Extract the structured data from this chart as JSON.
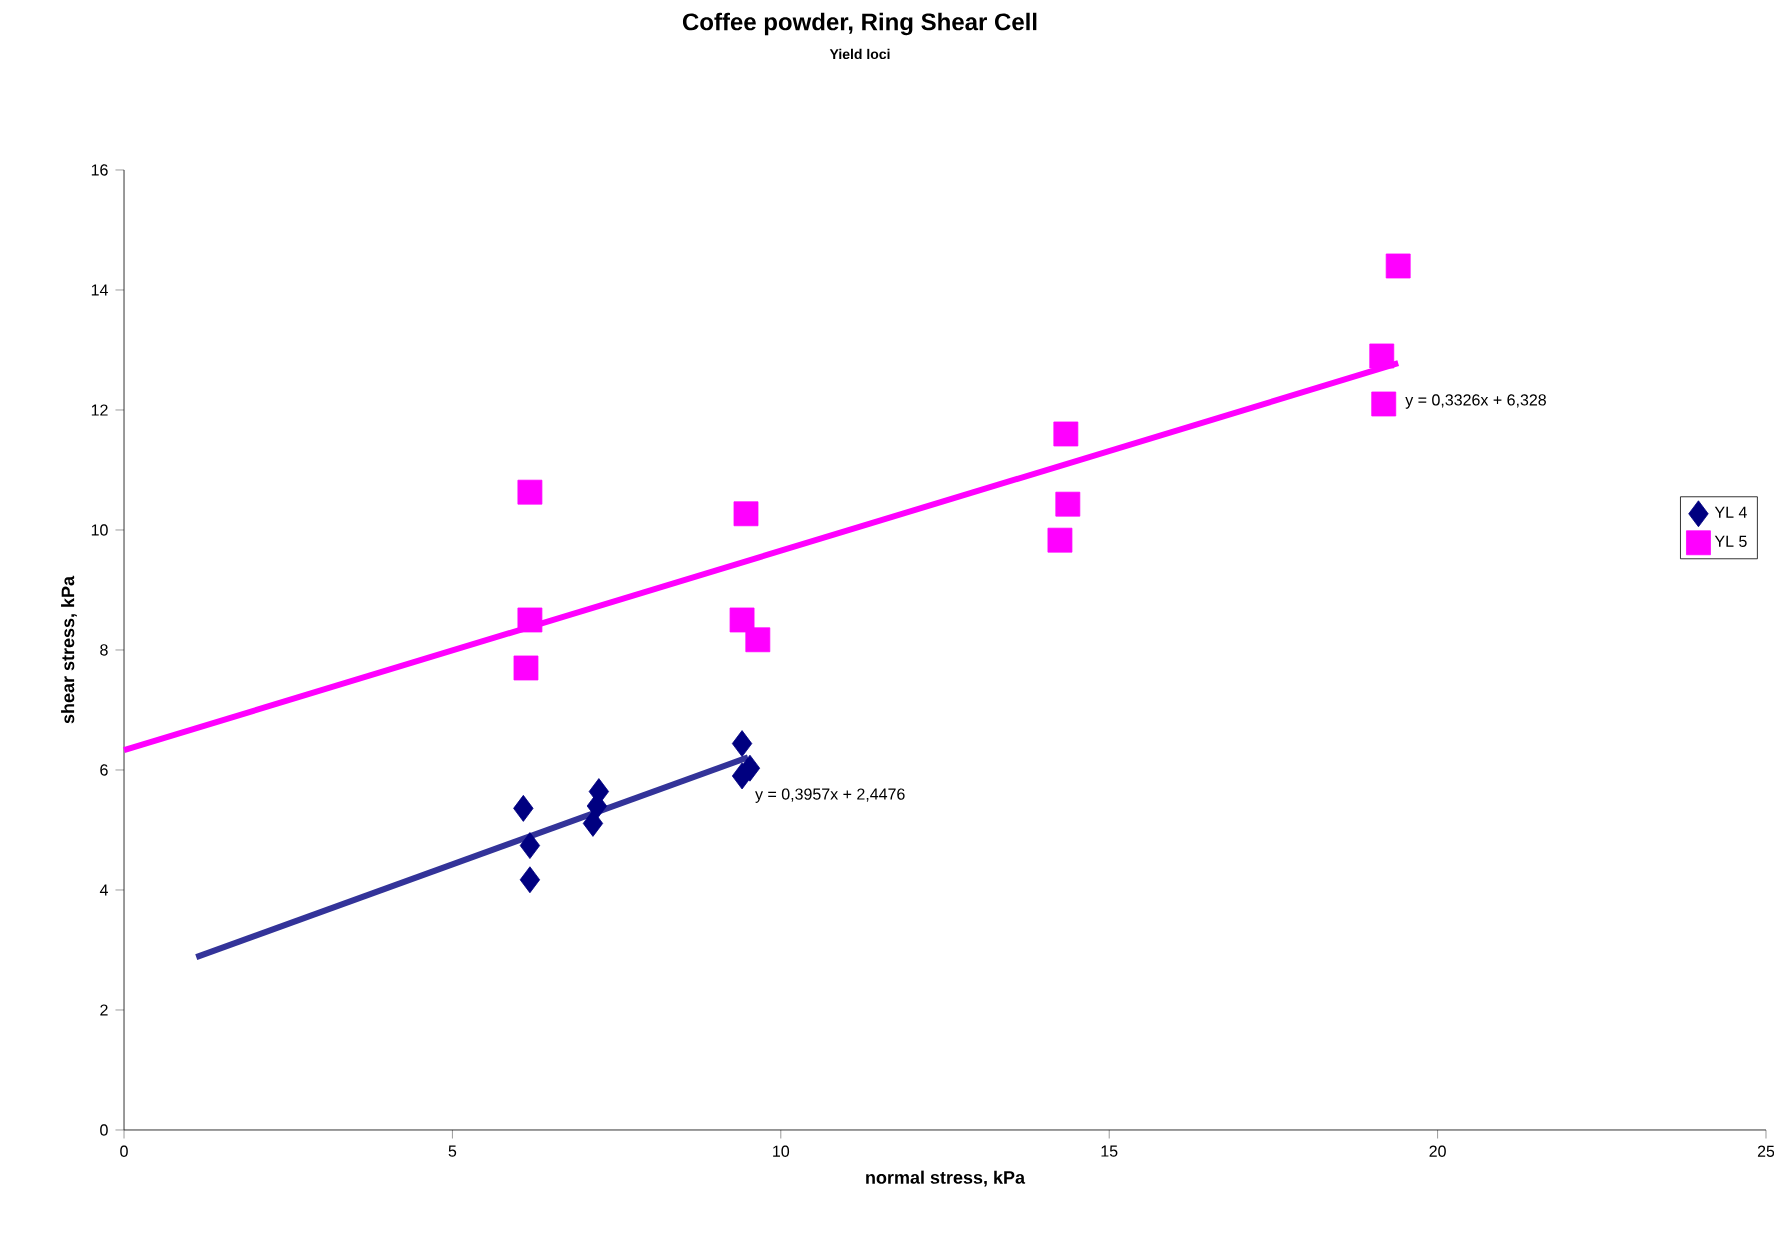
{
  "chart_data": {
    "type": "scatter",
    "title": "Coffee powder, Ring Shear Cell",
    "subtitle": "Yield loci",
    "xlabel": "normal stress, kPa",
    "ylabel": "shear stress, kPa",
    "xlim": [
      0,
      25
    ],
    "xticks": [
      0,
      5,
      10,
      15,
      20,
      25
    ],
    "ylim": [
      0,
      16
    ],
    "yticks": [
      0,
      2,
      4,
      6,
      8,
      10,
      12,
      14,
      16
    ],
    "legend": "right",
    "series": [
      {
        "name": "YL 4",
        "color": "#000080",
        "marker": "diamond",
        "x": [
          6.08,
          6.18,
          6.18,
          7.14,
          7.2,
          7.23,
          9.41,
          9.41,
          9.53
        ],
        "values": [
          5.36,
          4.74,
          4.17,
          5.11,
          5.4,
          5.64,
          6.44,
          5.9,
          6.03
        ]
      },
      {
        "name": "YL 5",
        "color": "#ff00ff",
        "marker": "square",
        "x": [
          6.12,
          6.18,
          6.18,
          9.41,
          9.47,
          9.65,
          14.25,
          14.37,
          14.34,
          19.15,
          19.18,
          19.4
        ],
        "values": [
          7.7,
          8.5,
          10.63,
          8.5,
          10.27,
          8.17,
          9.83,
          10.43,
          11.6,
          12.9,
          12.1,
          14.4
        ]
      },
      {
        "type": "line",
        "color": "#333399",
        "marker": "none",
        "x": [
          1.1,
          9.5
        ],
        "values": [
          2.88,
          6.21
        ]
      },
      {
        "type": "line",
        "color": "#ff00ff",
        "marker": "none",
        "x": [
          0,
          19.4
        ],
        "values": [
          6.33,
          12.78
        ]
      }
    ],
    "annotations": [
      "y = 0,3957x + 2,4476",
      "y = 0,3326x + 6,328"
    ]
  }
}
